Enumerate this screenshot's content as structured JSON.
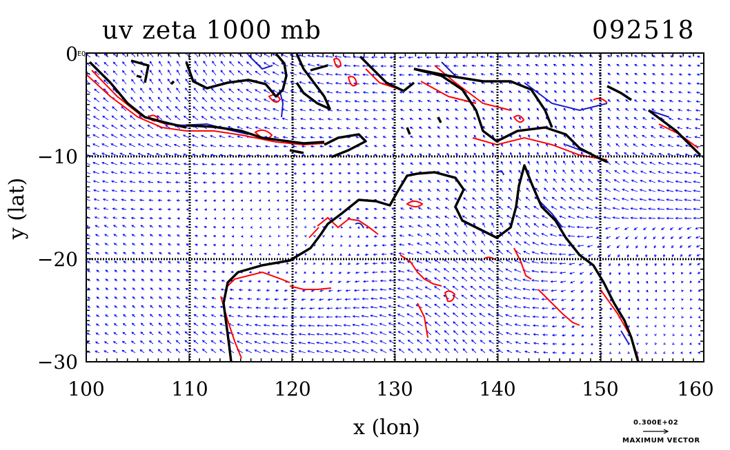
{
  "map": {
    "title": "uv zeta 1000 mb",
    "datestamp": "092518",
    "x_label": "x (lon)",
    "y_label": "y (lat)",
    "x_ticks": [
      "100",
      "110",
      "120",
      "130",
      "140",
      "150",
      "160"
    ],
    "y_ticks": [
      "0",
      "−10",
      "−20",
      "−30"
    ],
    "equator_marker": "EQ",
    "region": {
      "lon_range": [
        100,
        160
      ],
      "lat_range": [
        -30,
        0
      ]
    },
    "layers": [
      "wind vectors",
      "positive vorticity contours",
      "negative vorticity contours",
      "coastlines",
      "lat/lon grid"
    ],
    "vector_legend": {
      "magnitude": "0.300E+02",
      "label": "MAXIMUM VECTOR"
    },
    "colors": {
      "vectors": "#0000ff",
      "positive_contour": "#ff0000",
      "negative_contour": "#0000cc",
      "coastline": "#000000",
      "grid": "#000000"
    }
  }
}
